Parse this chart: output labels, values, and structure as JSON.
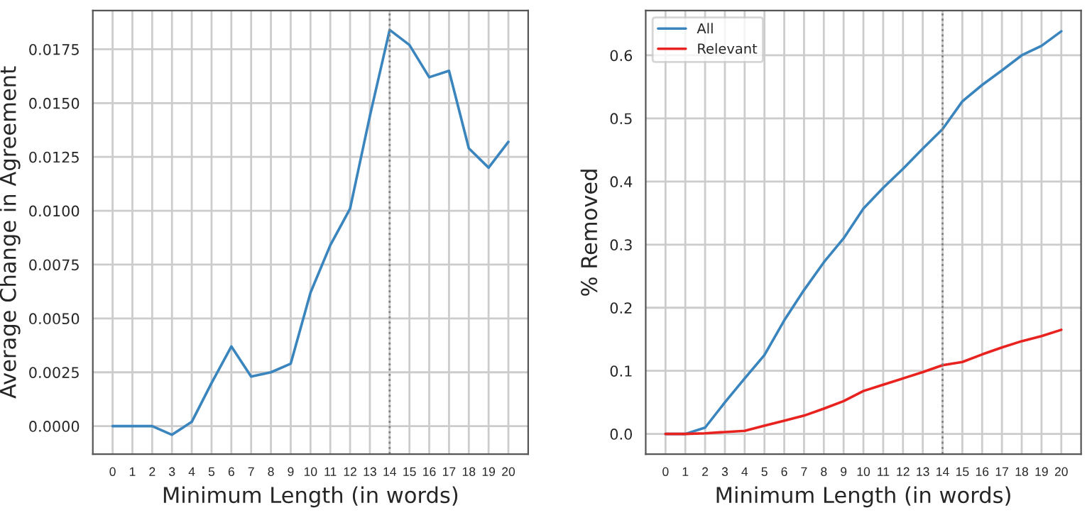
{
  "chart_data": [
    {
      "type": "line",
      "xlabel": "Minimum Length (in words)",
      "ylabel": "Average Change in Agreement",
      "x": [
        0,
        1,
        2,
        3,
        4,
        5,
        6,
        7,
        8,
        9,
        10,
        11,
        12,
        13,
        14,
        15,
        16,
        17,
        18,
        19,
        20
      ],
      "series": [
        {
          "color": "#3a85be",
          "values": [
            0,
            0,
            0,
            -0.0004,
            0.0002,
            0.002,
            0.0037,
            0.0023,
            0.0025,
            0.0029,
            0.0062,
            0.0084,
            0.0101,
            0.0144,
            0.0184,
            0.0177,
            0.0162,
            0.0165,
            0.0129,
            0.012,
            0.0132
          ]
        }
      ],
      "xlim": [
        -1,
        21
      ],
      "xticks": [
        0,
        1,
        2,
        3,
        4,
        5,
        6,
        7,
        8,
        9,
        10,
        11,
        12,
        13,
        14,
        15,
        16,
        17,
        18,
        19,
        20
      ],
      "ylim": [
        -0.0013,
        0.0193
      ],
      "yticks": [
        {
          "value": 0,
          "label": "0.0000"
        },
        {
          "value": 0.0025,
          "label": "0.0025"
        },
        {
          "value": 0.005,
          "label": "0.0050"
        },
        {
          "value": 0.0075,
          "label": "0.0075"
        },
        {
          "value": 0.01,
          "label": "0.0100"
        },
        {
          "value": 0.0125,
          "label": "0.0125"
        },
        {
          "value": 0.015,
          "label": "0.0150"
        },
        {
          "value": 0.0175,
          "label": "0.0175"
        }
      ],
      "ref_lines": [
        {
          "axis": "x",
          "value": 14,
          "color": "#808080",
          "line_style": "dotted"
        }
      ],
      "grid": true,
      "legend": false
    },
    {
      "type": "line",
      "xlabel": "Minimum Length (in words)",
      "ylabel": "% Removed",
      "x": [
        0,
        1,
        2,
        3,
        4,
        5,
        6,
        7,
        8,
        9,
        10,
        11,
        12,
        13,
        14,
        15,
        16,
        17,
        18,
        19,
        20
      ],
      "series": [
        {
          "name": "All",
          "color": "#3a85be",
          "values": [
            0,
            0,
            0.01,
            0.05,
            0.088,
            0.125,
            0.18,
            0.228,
            0.272,
            0.31,
            0.357,
            0.39,
            0.42,
            0.452,
            0.483,
            0.527,
            0.553,
            0.576,
            0.6,
            0.615,
            0.638
          ]
        },
        {
          "name": "Relevant",
          "color": "#e8231f",
          "values": [
            0,
            0,
            0.001,
            0.003,
            0.005,
            0.013,
            0.021,
            0.029,
            0.04,
            0.052,
            0.068,
            0.078,
            0.088,
            0.098,
            0.109,
            0.114,
            0.126,
            0.137,
            0.147,
            0.155,
            0.165
          ]
        }
      ],
      "xlim": [
        -1,
        21
      ],
      "xticks": [
        0,
        1,
        2,
        3,
        4,
        5,
        6,
        7,
        8,
        9,
        10,
        11,
        12,
        13,
        14,
        15,
        16,
        17,
        18,
        19,
        20
      ],
      "ylim": [
        -0.032,
        0.671
      ],
      "yticks": [
        {
          "value": 0,
          "label": "0.0"
        },
        {
          "value": 0.1,
          "label": "0.1"
        },
        {
          "value": 0.2,
          "label": "0.2"
        },
        {
          "value": 0.3,
          "label": "0.3"
        },
        {
          "value": 0.4,
          "label": "0.4"
        },
        {
          "value": 0.5,
          "label": "0.5"
        },
        {
          "value": 0.6,
          "label": "0.6"
        }
      ],
      "ref_lines": [
        {
          "axis": "x",
          "value": 14,
          "color": "#808080",
          "line_style": "dotted"
        }
      ],
      "grid": true,
      "legend": "top left"
    }
  ]
}
